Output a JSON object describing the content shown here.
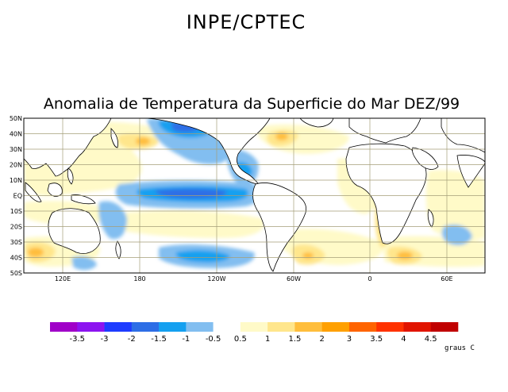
{
  "header": {
    "organization": "INPE/CPTEC",
    "title": "Anomalia de Temperatura da Superficie do Mar DEZ/99"
  },
  "map": {
    "type": "sea-surface-temperature-anomaly",
    "month": "DEZ/99",
    "lat_labels": [
      "50N",
      "40N",
      "30N",
      "20N",
      "10N",
      "EQ",
      "10S",
      "20S",
      "30S",
      "40S",
      "50S"
    ],
    "lon_labels": [
      "120E",
      "180",
      "120W",
      "60W",
      "0",
      "60E"
    ],
    "grid_color": "#a49e78",
    "land_color": "#ffffff",
    "coast_color": "#000000"
  },
  "legend": {
    "labels": [
      "-3.5",
      "-3",
      "-2",
      "-1.5",
      "-1",
      "-0.5",
      "0.5",
      "1",
      "1.5",
      "2",
      "3",
      "3.5",
      "4",
      "4.5"
    ],
    "colors": [
      "#a000c8",
      "#8c14f0",
      "#1e3cff",
      "#2d6ee6",
      "#14a0f0",
      "#82bef0",
      "#ffffff",
      "#fffac8",
      "#ffe68c",
      "#ffbe3c",
      "#ffa000",
      "#ff6400",
      "#ff3200",
      "#e11400",
      "#c00000"
    ],
    "units": "graus C"
  }
}
